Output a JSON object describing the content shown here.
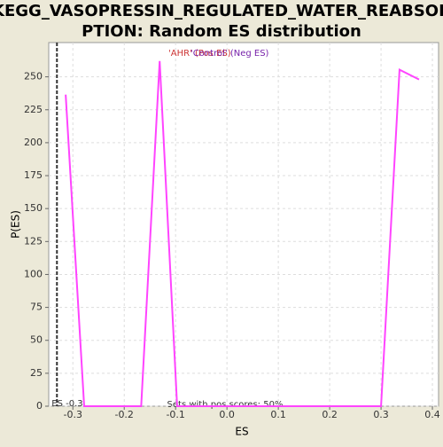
{
  "chart_data": {
    "type": "line",
    "title": [
      "KEGG_VASOPRESSIN_REGULATED_WATER_REABSOR",
      "PTION: Random ES distribution"
    ],
    "xlabel": "ES",
    "ylabel": "P(ES)",
    "x": [
      -0.314,
      -0.278,
      -0.167,
      -0.131,
      -0.097,
      0.3,
      0.336,
      0.374
    ],
    "series": [
      {
        "name": "",
        "color": "#ff44ff",
        "values": [
          236.5,
          0,
          0,
          262,
          0,
          0,
          255.4,
          248
        ]
      }
    ],
    "xlim": [
      -0.347,
      0.412
    ],
    "ylim": [
      0,
      276
    ],
    "xticks": [
      -0.3,
      -0.2,
      -0.1,
      {
        "value": 0,
        "label": "0.0"
      },
      0.1,
      0.2,
      0.3,
      0.4
    ],
    "yticks": [
      0,
      25,
      50,
      75,
      100,
      125,
      150,
      175,
      200,
      225,
      250
    ],
    "grid": true,
    "es_marker": {
      "value": -0.331,
      "label": "ES -0.3"
    },
    "legend": [
      {
        "text": "'AHR' (Pos ES)",
        "color": "#cc3333"
      },
      {
        "text": "'Control' (Neg ES)",
        "color": "#7722aa"
      }
    ],
    "footnote": "Sets with pos scores: 50%"
  }
}
